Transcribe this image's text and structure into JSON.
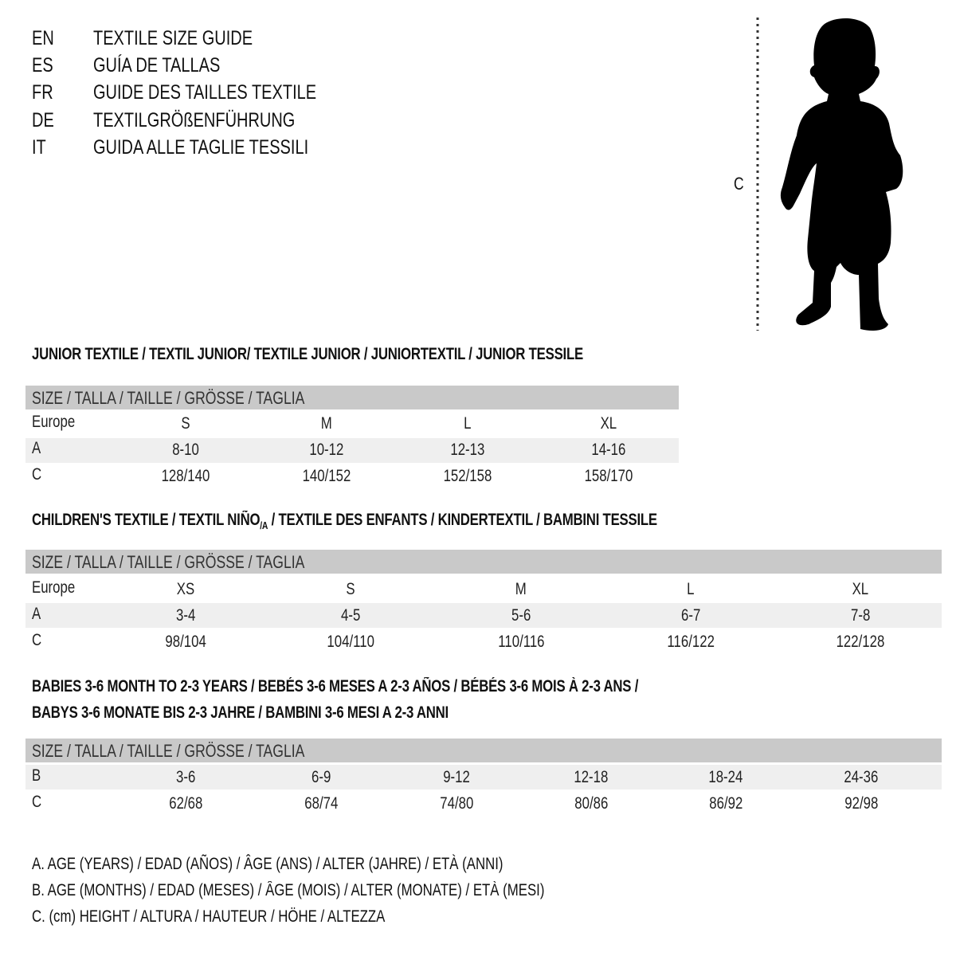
{
  "header": {
    "languages": [
      {
        "code": "EN",
        "title": "TEXTILE SIZE GUIDE"
      },
      {
        "code": "ES",
        "title": "GUÍA DE TALLAS"
      },
      {
        "code": "FR",
        "title": "GUIDE DES TAILLES TEXTILE"
      },
      {
        "code": "DE",
        "title": "TEXTILGRÖßENFÜHRUNG"
      },
      {
        "code": "IT",
        "title": "GUIDA ALLE TAGLIE TESSILI"
      }
    ]
  },
  "figure": {
    "measure_label": "C",
    "icon": "child-silhouette"
  },
  "size_header": "SIZE / TALLA / TAILLE / GRÖSSE / TAGLIA",
  "junior": {
    "title": "JUNIOR TEXTILE / TEXTIL JUNIOR/ TEXTILE JUNIOR / JUNIORTEXTIL / JUNIOR TESSILE",
    "rows": [
      {
        "label": "Europe",
        "values": [
          "S",
          "M",
          "L",
          "XL"
        ]
      },
      {
        "label": "A",
        "values": [
          "8-10",
          "10-12",
          "12-13",
          "14-16"
        ]
      },
      {
        "label": "C",
        "values": [
          "128/140",
          "140/152",
          "152/158",
          "158/170"
        ]
      }
    ]
  },
  "children": {
    "title_a": "CHILDREN'S TEXTILE / TEXTIL NIÑO",
    "title_sub": "/A",
    "title_b": " / TEXTILE DES ENFANTS / KINDERTEXTIL / BAMBINI TESSILE",
    "rows": [
      {
        "label": "Europe",
        "values": [
          "XS",
          "S",
          "M",
          "L",
          "XL"
        ]
      },
      {
        "label": "A",
        "values": [
          "3-4",
          "4-5",
          "5-6",
          "6-7",
          "7-8"
        ]
      },
      {
        "label": "C",
        "values": [
          "98/104",
          "104/110",
          "110/116",
          "116/122",
          "122/128"
        ]
      }
    ]
  },
  "babies": {
    "title_line1": "BABIES 3-6 MONTH TO 2-3 YEARS / BEBÉS 3-6 MESES A 2-3 AÑOS / BÉBÉS 3-6 MOIS À 2-3 ANS /",
    "title_line2": "BABYS 3-6 MONATE BIS 2-3 JAHRE / BAMBINI 3-6 MESI A 2-3 ANNI",
    "rows": [
      {
        "label": "B",
        "values": [
          "3-6",
          "6-9",
          "9-12",
          "12-18",
          "18-24",
          "24-36"
        ]
      },
      {
        "label": "C",
        "values": [
          "62/68",
          "68/74",
          "74/80",
          "80/86",
          "86/92",
          "92/98"
        ]
      }
    ]
  },
  "legend": [
    "A. AGE (YEARS) / EDAD (AÑOS) / ÂGE (ANS) / ALTER (JAHRE) / ETÀ (ANNI)",
    "B. AGE (MONTHS) / EDAD (MESES) / ÂGE (MOIS) / ALTER (MONATE) / ETÀ (MESI)",
    "C. (cm) HEIGHT / ALTURA / HAUTEUR / HÖHE / ALTEZZA"
  ],
  "colors": {
    "header_bar": "#c9c9c9",
    "row_shade": "#efefef",
    "text": "#111111"
  }
}
